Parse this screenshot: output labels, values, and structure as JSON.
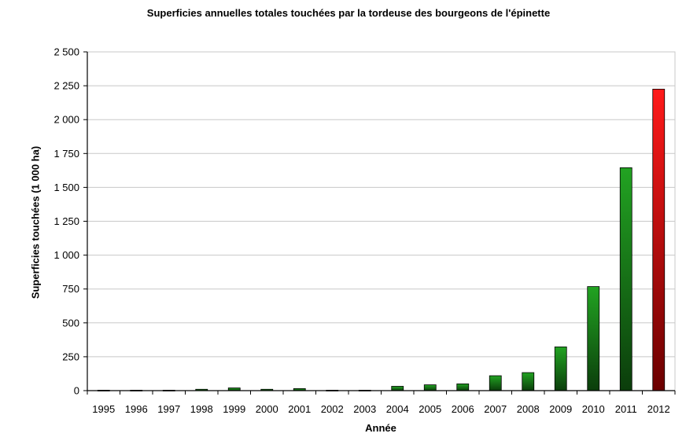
{
  "chart_data": {
    "type": "bar",
    "title": "Superficies annuelles totales touchées par la tordeuse des bourgeons de l'épinette",
    "xlabel": "Année",
    "ylabel": "Superficies touchées (1 000 ha)",
    "categories": [
      "1995",
      "1996",
      "1997",
      "1998",
      "1999",
      "2000",
      "2001",
      "2002",
      "2003",
      "2004",
      "2005",
      "2006",
      "2007",
      "2008",
      "2009",
      "2010",
      "2011",
      "2012"
    ],
    "values": [
      3,
      3,
      3,
      10,
      20,
      10,
      15,
      3,
      3,
      32,
      43,
      50,
      110,
      133,
      323,
      768,
      1645,
      2225
    ],
    "ylim": [
      0,
      2500
    ],
    "yticks": [
      0,
      250,
      500,
      750,
      1000,
      1250,
      1500,
      1750,
      2000,
      2250,
      2500
    ],
    "ytick_labels": [
      "0",
      "250",
      "500",
      "750",
      "1 000",
      "1 250",
      "1 500",
      "1 750",
      "2 000",
      "2 250",
      "2 500"
    ],
    "grid": true,
    "colors": {
      "bars": "#1a8a1a",
      "highlight": "#e60000",
      "grid": "#c8c8c8"
    }
  }
}
